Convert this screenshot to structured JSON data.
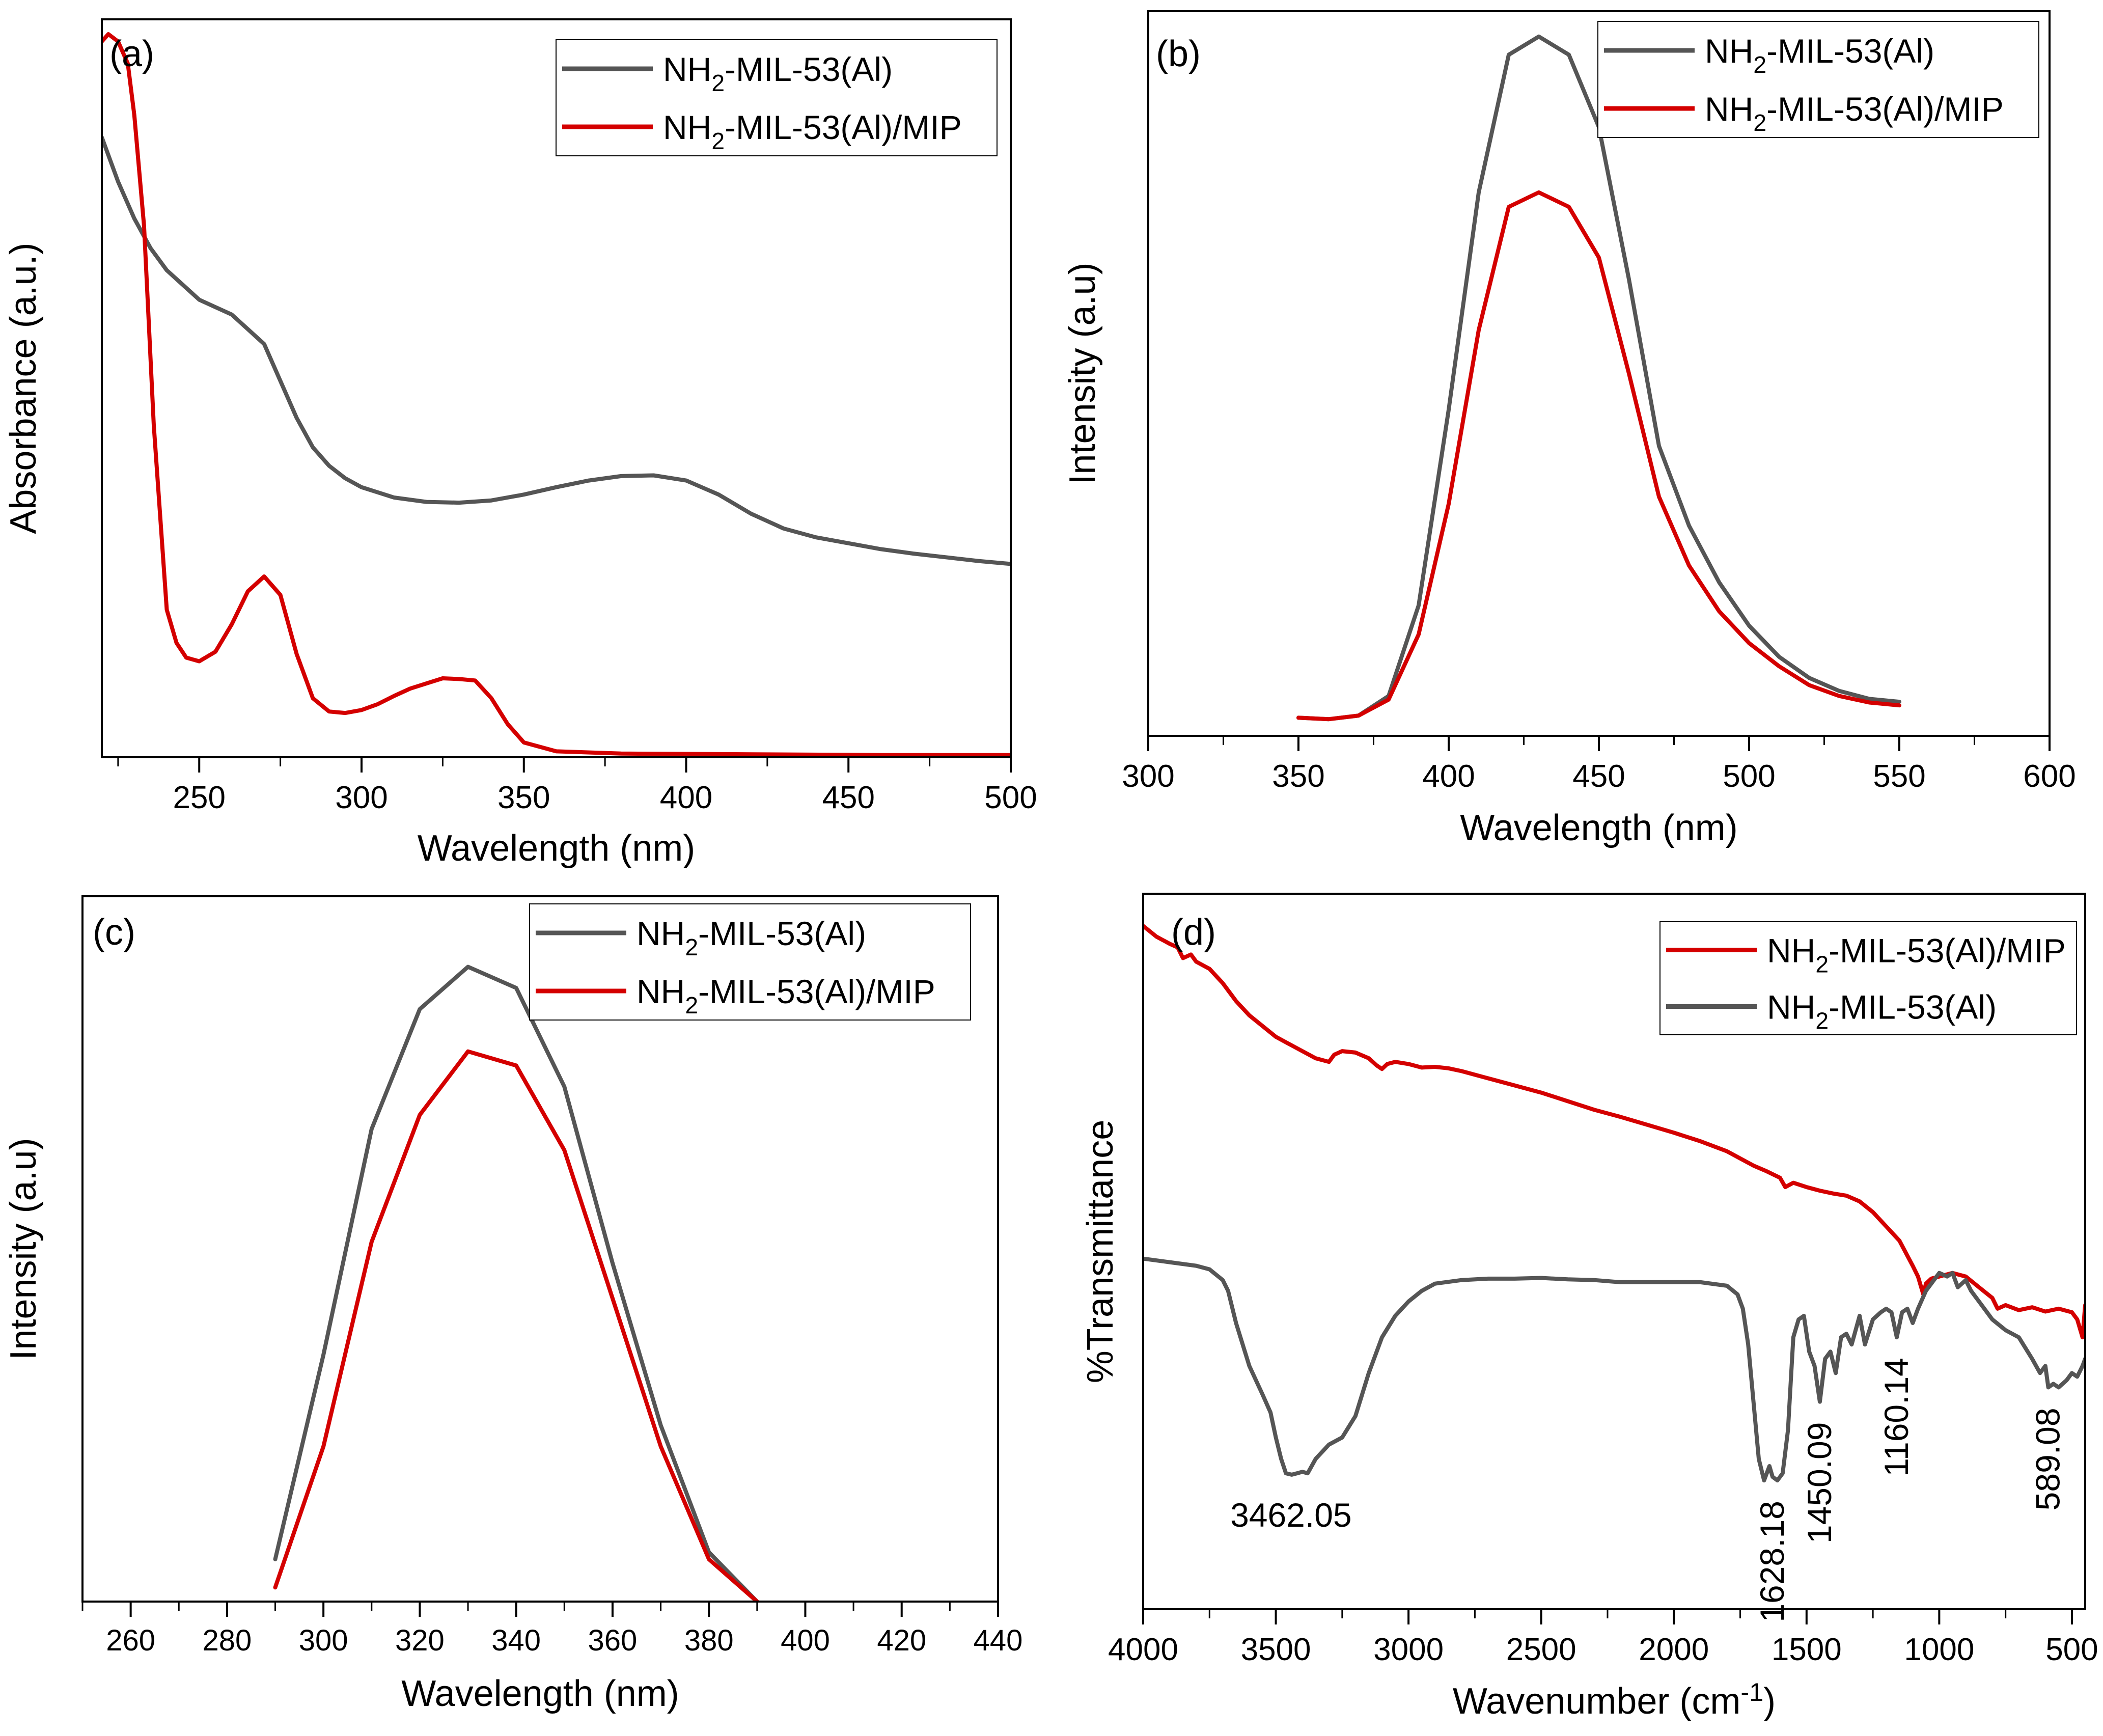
{
  "figure": {
    "background": "#ffffff"
  },
  "colors": {
    "pristine": "#555555",
    "mip": "#d40000",
    "axis": "#000000"
  },
  "chart_data": [
    {
      "id": "a",
      "type": "line",
      "panel_label": "(a)",
      "xlabel": "Wavelength (nm)",
      "ylabel": "Absorbance (a.u.)",
      "xlim": [
        220,
        500
      ],
      "ylim": [
        0,
        1.0
      ],
      "xticks": [
        250,
        300,
        350,
        400,
        450,
        500
      ],
      "xminor": [
        225,
        275,
        325,
        375,
        425,
        475
      ],
      "show_yticks": false,
      "legend_position": "top-right",
      "series": [
        {
          "name": "NH2-MIL-53(Al)",
          "name_base": "NH",
          "name_sub": "2",
          "name_rest": "-MIL-53(Al)",
          "color": "#555555",
          "x": [
            220,
            225,
            230,
            235,
            240,
            245,
            250,
            255,
            260,
            265,
            270,
            275,
            280,
            285,
            290,
            295,
            300,
            310,
            320,
            330,
            340,
            350,
            360,
            370,
            380,
            390,
            400,
            410,
            420,
            430,
            440,
            450,
            460,
            470,
            480,
            490,
            500
          ],
          "y": [
            0.84,
            0.78,
            0.73,
            0.69,
            0.66,
            0.64,
            0.62,
            0.61,
            0.6,
            0.58,
            0.56,
            0.51,
            0.46,
            0.42,
            0.395,
            0.378,
            0.366,
            0.352,
            0.346,
            0.345,
            0.348,
            0.356,
            0.366,
            0.375,
            0.381,
            0.382,
            0.375,
            0.356,
            0.33,
            0.31,
            0.298,
            0.29,
            0.282,
            0.276,
            0.271,
            0.266,
            0.262
          ]
        },
        {
          "name": "NH2-MIL-53(Al)/MIP",
          "name_base": "NH",
          "name_sub": "2",
          "name_rest": "-MIL-53(Al)/MIP",
          "color": "#d40000",
          "x": [
            220,
            222,
            225,
            228,
            230,
            233,
            236,
            240,
            243,
            246,
            250,
            255,
            260,
            265,
            270,
            275,
            280,
            285,
            290,
            295,
            300,
            305,
            310,
            315,
            320,
            325,
            330,
            335,
            340,
            345,
            350,
            360,
            380,
            420,
            460,
            500
          ],
          "y": [
            0.97,
            0.98,
            0.97,
            0.94,
            0.87,
            0.72,
            0.45,
            0.2,
            0.155,
            0.135,
            0.13,
            0.143,
            0.18,
            0.225,
            0.245,
            0.22,
            0.14,
            0.08,
            0.062,
            0.06,
            0.064,
            0.072,
            0.083,
            0.093,
            0.1,
            0.107,
            0.106,
            0.104,
            0.08,
            0.045,
            0.02,
            0.008,
            0.005,
            0.004,
            0.003,
            0.003
          ]
        }
      ]
    },
    {
      "id": "b",
      "type": "line",
      "panel_label": "(b)",
      "xlabel": "Wavelength (nm)",
      "ylabel": "Intensity (a.u)",
      "xlim": [
        300,
        600
      ],
      "ylim": [
        0,
        1.0
      ],
      "xticks": [
        300,
        350,
        400,
        450,
        500,
        550,
        600
      ],
      "xminor": [
        325,
        375,
        425,
        475,
        525,
        575
      ],
      "show_yticks": false,
      "legend_position": "top-right",
      "series": [
        {
          "name": "NH2-MIL-53(Al)",
          "name_base": "NH",
          "name_sub": "2",
          "name_rest": "-MIL-53(Al)",
          "color": "#555555",
          "x": [
            350,
            360,
            370,
            380,
            390,
            400,
            410,
            420,
            430,
            440,
            450,
            460,
            470,
            480,
            490,
            500,
            510,
            520,
            530,
            540,
            550
          ],
          "y": [
            0.025,
            0.023,
            0.028,
            0.055,
            0.18,
            0.45,
            0.75,
            0.94,
            0.965,
            0.94,
            0.84,
            0.63,
            0.4,
            0.29,
            0.212,
            0.152,
            0.109,
            0.08,
            0.062,
            0.051,
            0.047
          ]
        },
        {
          "name": "NH2-MIL-53(Al)/MIP",
          "name_base": "NH",
          "name_sub": "2",
          "name_rest": "-MIL-53(Al)/MIP",
          "color": "#d40000",
          "x": [
            350,
            360,
            370,
            380,
            390,
            400,
            410,
            420,
            430,
            440,
            450,
            460,
            470,
            480,
            490,
            500,
            510,
            520,
            530,
            540,
            550
          ],
          "y": [
            0.025,
            0.023,
            0.028,
            0.05,
            0.14,
            0.32,
            0.56,
            0.73,
            0.75,
            0.73,
            0.66,
            0.5,
            0.33,
            0.235,
            0.172,
            0.128,
            0.096,
            0.07,
            0.055,
            0.046,
            0.042
          ]
        }
      ]
    },
    {
      "id": "c",
      "type": "line",
      "panel_label": "(c)",
      "xlabel": "Wavelength (nm)",
      "ylabel": "Intensity (a.u)",
      "xlim": [
        250,
        440
      ],
      "ylim": [
        0,
        1.0
      ],
      "xticks": [
        260,
        280,
        300,
        320,
        340,
        360,
        380,
        400,
        420,
        440
      ],
      "xminor": [
        250,
        270,
        290,
        310,
        330,
        350,
        370,
        390,
        410,
        430
      ],
      "show_yticks": false,
      "legend_position": "top-right",
      "series": [
        {
          "name": "NH2-MIL-53(Al)",
          "name_base": "NH",
          "name_sub": "2",
          "name_rest": "-MIL-53(Al)",
          "color": "#555555",
          "x": [
            290,
            300,
            310,
            320,
            330,
            340,
            350,
            360,
            370,
            380,
            390
          ],
          "y": [
            0.06,
            0.35,
            0.67,
            0.84,
            0.9,
            0.87,
            0.73,
            0.48,
            0.25,
            0.07,
            0.0
          ]
        },
        {
          "name": "NH2-MIL-53(Al)/MIP",
          "name_base": "NH",
          "name_sub": "2",
          "name_rest": "-MIL-53(Al)/MIP",
          "color": "#d40000",
          "x": [
            290,
            300,
            310,
            320,
            330,
            340,
            350,
            360,
            370,
            380,
            390
          ],
          "y": [
            0.02,
            0.22,
            0.51,
            0.69,
            0.78,
            0.76,
            0.64,
            0.43,
            0.22,
            0.06,
            0.0
          ]
        }
      ]
    },
    {
      "id": "d",
      "type": "line",
      "panel_label": "(d)",
      "xlabel_base": "Wavenumber (cm",
      "xlabel_sup": "-1",
      "xlabel_end": ")",
      "ylabel": "%Transmittance",
      "xlim": [
        4000,
        450
      ],
      "ylim": [
        0,
        1.0
      ],
      "xticks": [
        4000,
        3500,
        3000,
        2500,
        2000,
        1500,
        1000,
        500
      ],
      "xminor": [
        3750,
        3250,
        2750,
        2250,
        1750,
        1250,
        750
      ],
      "show_yticks": false,
      "legend_position": "top-right",
      "series": [
        {
          "name": "NH2-MIL-53(Al)/MIP",
          "name_base": "NH",
          "name_sub": "2",
          "name_rest": "-MIL-53(Al)/MIP",
          "color": "#d40000",
          "x": [
            4000,
            3950,
            3900,
            3870,
            3850,
            3820,
            3800,
            3750,
            3700,
            3650,
            3600,
            3550,
            3500,
            3450,
            3400,
            3350,
            3300,
            3280,
            3250,
            3200,
            3150,
            3120,
            3100,
            3080,
            3050,
            3000,
            2950,
            2900,
            2850,
            2800,
            2700,
            2600,
            2500,
            2400,
            2300,
            2200,
            2100,
            2000,
            1900,
            1800,
            1700,
            1650,
            1600,
            1580,
            1550,
            1500,
            1450,
            1400,
            1350,
            1300,
            1250,
            1200,
            1150,
            1100,
            1080,
            1060,
            1050,
            1030,
            1000,
            950,
            900,
            850,
            800,
            780,
            750,
            700,
            650,
            600,
            550,
            500,
            480,
            460,
            450
          ],
          "y": [
            0.955,
            0.94,
            0.93,
            0.925,
            0.91,
            0.915,
            0.905,
            0.895,
            0.875,
            0.85,
            0.83,
            0.815,
            0.8,
            0.79,
            0.78,
            0.77,
            0.765,
            0.775,
            0.78,
            0.778,
            0.77,
            0.76,
            0.755,
            0.762,
            0.765,
            0.762,
            0.757,
            0.758,
            0.756,
            0.752,
            0.742,
            0.732,
            0.722,
            0.71,
            0.698,
            0.688,
            0.677,
            0.666,
            0.654,
            0.64,
            0.62,
            0.612,
            0.603,
            0.59,
            0.596,
            0.59,
            0.585,
            0.581,
            0.578,
            0.57,
            0.555,
            0.535,
            0.515,
            0.48,
            0.465,
            0.44,
            0.455,
            0.462,
            0.465,
            0.47,
            0.465,
            0.45,
            0.435,
            0.42,
            0.425,
            0.418,
            0.422,
            0.416,
            0.42,
            0.415,
            0.405,
            0.38,
            0.425
          ]
        },
        {
          "name": "NH2-MIL-53(Al)",
          "name_base": "NH",
          "name_sub": "2",
          "name_rest": "-MIL-53(Al)",
          "color": "#555555",
          "x": [
            4000,
            3900,
            3800,
            3750,
            3700,
            3680,
            3650,
            3600,
            3550,
            3520,
            3500,
            3480,
            3462,
            3440,
            3420,
            3400,
            3380,
            3350,
            3300,
            3250,
            3200,
            3150,
            3100,
            3050,
            3000,
            2950,
            2900,
            2800,
            2700,
            2600,
            2500,
            2400,
            2300,
            2200,
            2100,
            2000,
            1900,
            1800,
            1760,
            1740,
            1720,
            1700,
            1680,
            1660,
            1640,
            1628,
            1610,
            1590,
            1570,
            1550,
            1530,
            1510,
            1490,
            1470,
            1450,
            1430,
            1410,
            1390,
            1370,
            1350,
            1330,
            1300,
            1280,
            1250,
            1220,
            1200,
            1180,
            1160,
            1140,
            1120,
            1100,
            1080,
            1050,
            1000,
            970,
            950,
            930,
            900,
            880,
            850,
            800,
            750,
            700,
            650,
            620,
            600,
            589,
            570,
            550,
            520,
            500,
            480,
            460,
            450
          ],
          "y": [
            0.49,
            0.485,
            0.48,
            0.475,
            0.46,
            0.445,
            0.4,
            0.34,
            0.3,
            0.275,
            0.24,
            0.21,
            0.19,
            0.188,
            0.19,
            0.192,
            0.19,
            0.21,
            0.23,
            0.24,
            0.27,
            0.33,
            0.38,
            0.41,
            0.43,
            0.445,
            0.455,
            0.46,
            0.462,
            0.462,
            0.463,
            0.461,
            0.46,
            0.457,
            0.457,
            0.457,
            0.457,
            0.452,
            0.44,
            0.42,
            0.37,
            0.29,
            0.21,
            0.18,
            0.2,
            0.185,
            0.18,
            0.19,
            0.25,
            0.38,
            0.405,
            0.41,
            0.36,
            0.34,
            0.29,
            0.35,
            0.36,
            0.33,
            0.38,
            0.385,
            0.37,
            0.41,
            0.37,
            0.405,
            0.415,
            0.42,
            0.415,
            0.38,
            0.415,
            0.42,
            0.4,
            0.42,
            0.445,
            0.47,
            0.465,
            0.47,
            0.45,
            0.46,
            0.445,
            0.43,
            0.405,
            0.39,
            0.38,
            0.35,
            0.33,
            0.34,
            0.31,
            0.315,
            0.31,
            0.32,
            0.33,
            0.325,
            0.34,
            0.35
          ]
        }
      ],
      "annotations": [
        {
          "text": "3462.05",
          "x": 3462,
          "y": 0.19,
          "orientation": "horizontal"
        },
        {
          "text": "1628.18",
          "x": 1628,
          "y": 0.18,
          "orientation": "vertical"
        },
        {
          "text": "1450.09",
          "x": 1450,
          "y": 0.29,
          "orientation": "vertical"
        },
        {
          "text": "1160.14",
          "x": 1160,
          "y": 0.38,
          "orientation": "vertical"
        },
        {
          "text": "589.08",
          "x": 589,
          "y": 0.31,
          "orientation": "vertical"
        }
      ]
    }
  ]
}
